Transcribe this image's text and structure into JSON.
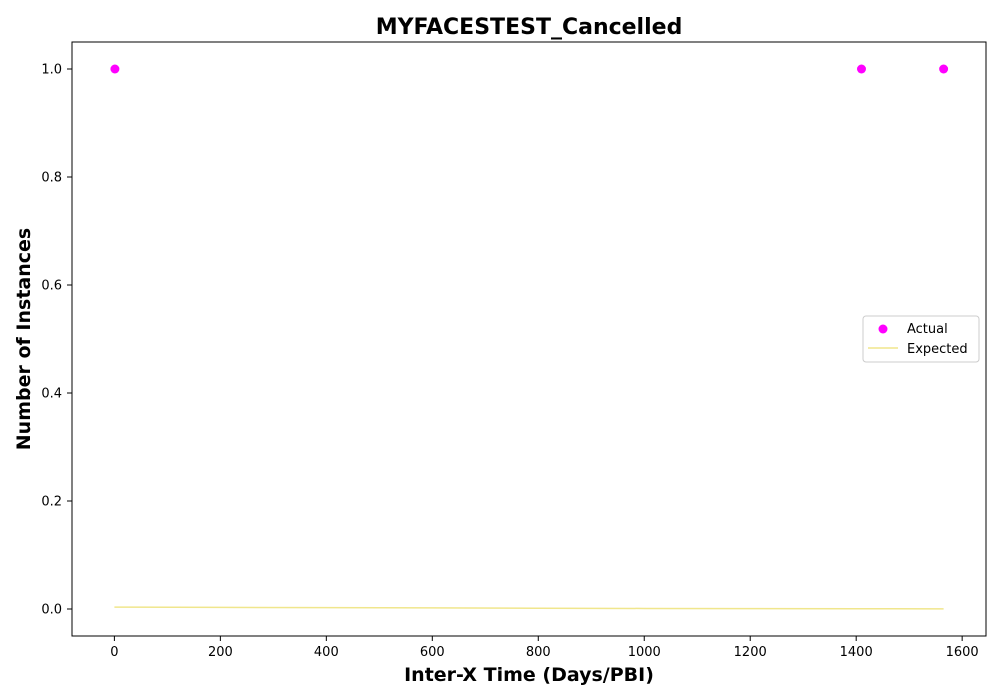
{
  "chart_data": {
    "type": "scatter",
    "title": "MYFACESTEST_Cancelled",
    "xlabel": "Inter-X Time (Days/PBI)",
    "ylabel": "Number of Instances",
    "xlim": [
      -80,
      1645
    ],
    "ylim": [
      -0.05,
      1.05
    ],
    "x_ticks": [
      0,
      200,
      400,
      600,
      800,
      1000,
      1200,
      1400,
      1600
    ],
    "x_tick_labels": [
      "0",
      "200",
      "400",
      "600",
      "800",
      "1000",
      "1200",
      "1400",
      "1600"
    ],
    "y_ticks": [
      0.0,
      0.2,
      0.4,
      0.6,
      0.8,
      1.0
    ],
    "y_tick_labels": [
      "0.0",
      "0.2",
      "0.4",
      "0.6",
      "0.8",
      "1.0"
    ],
    "grid": false,
    "legend_position": "center-right",
    "series": [
      {
        "name": "Actual",
        "kind": "scatter",
        "color": "#ff00ff",
        "x": [
          1,
          1410,
          1565
        ],
        "y": [
          1.0,
          1.0,
          1.0
        ]
      },
      {
        "name": "Expected",
        "kind": "line",
        "color": "#f0e68c",
        "x": [
          0,
          200,
          400,
          600,
          800,
          1000,
          1200,
          1400,
          1565
        ],
        "y": [
          0.0035,
          0.003,
          0.0025,
          0.002,
          0.0015,
          0.001,
          0.0008,
          0.0005,
          0.0003
        ]
      }
    ]
  }
}
